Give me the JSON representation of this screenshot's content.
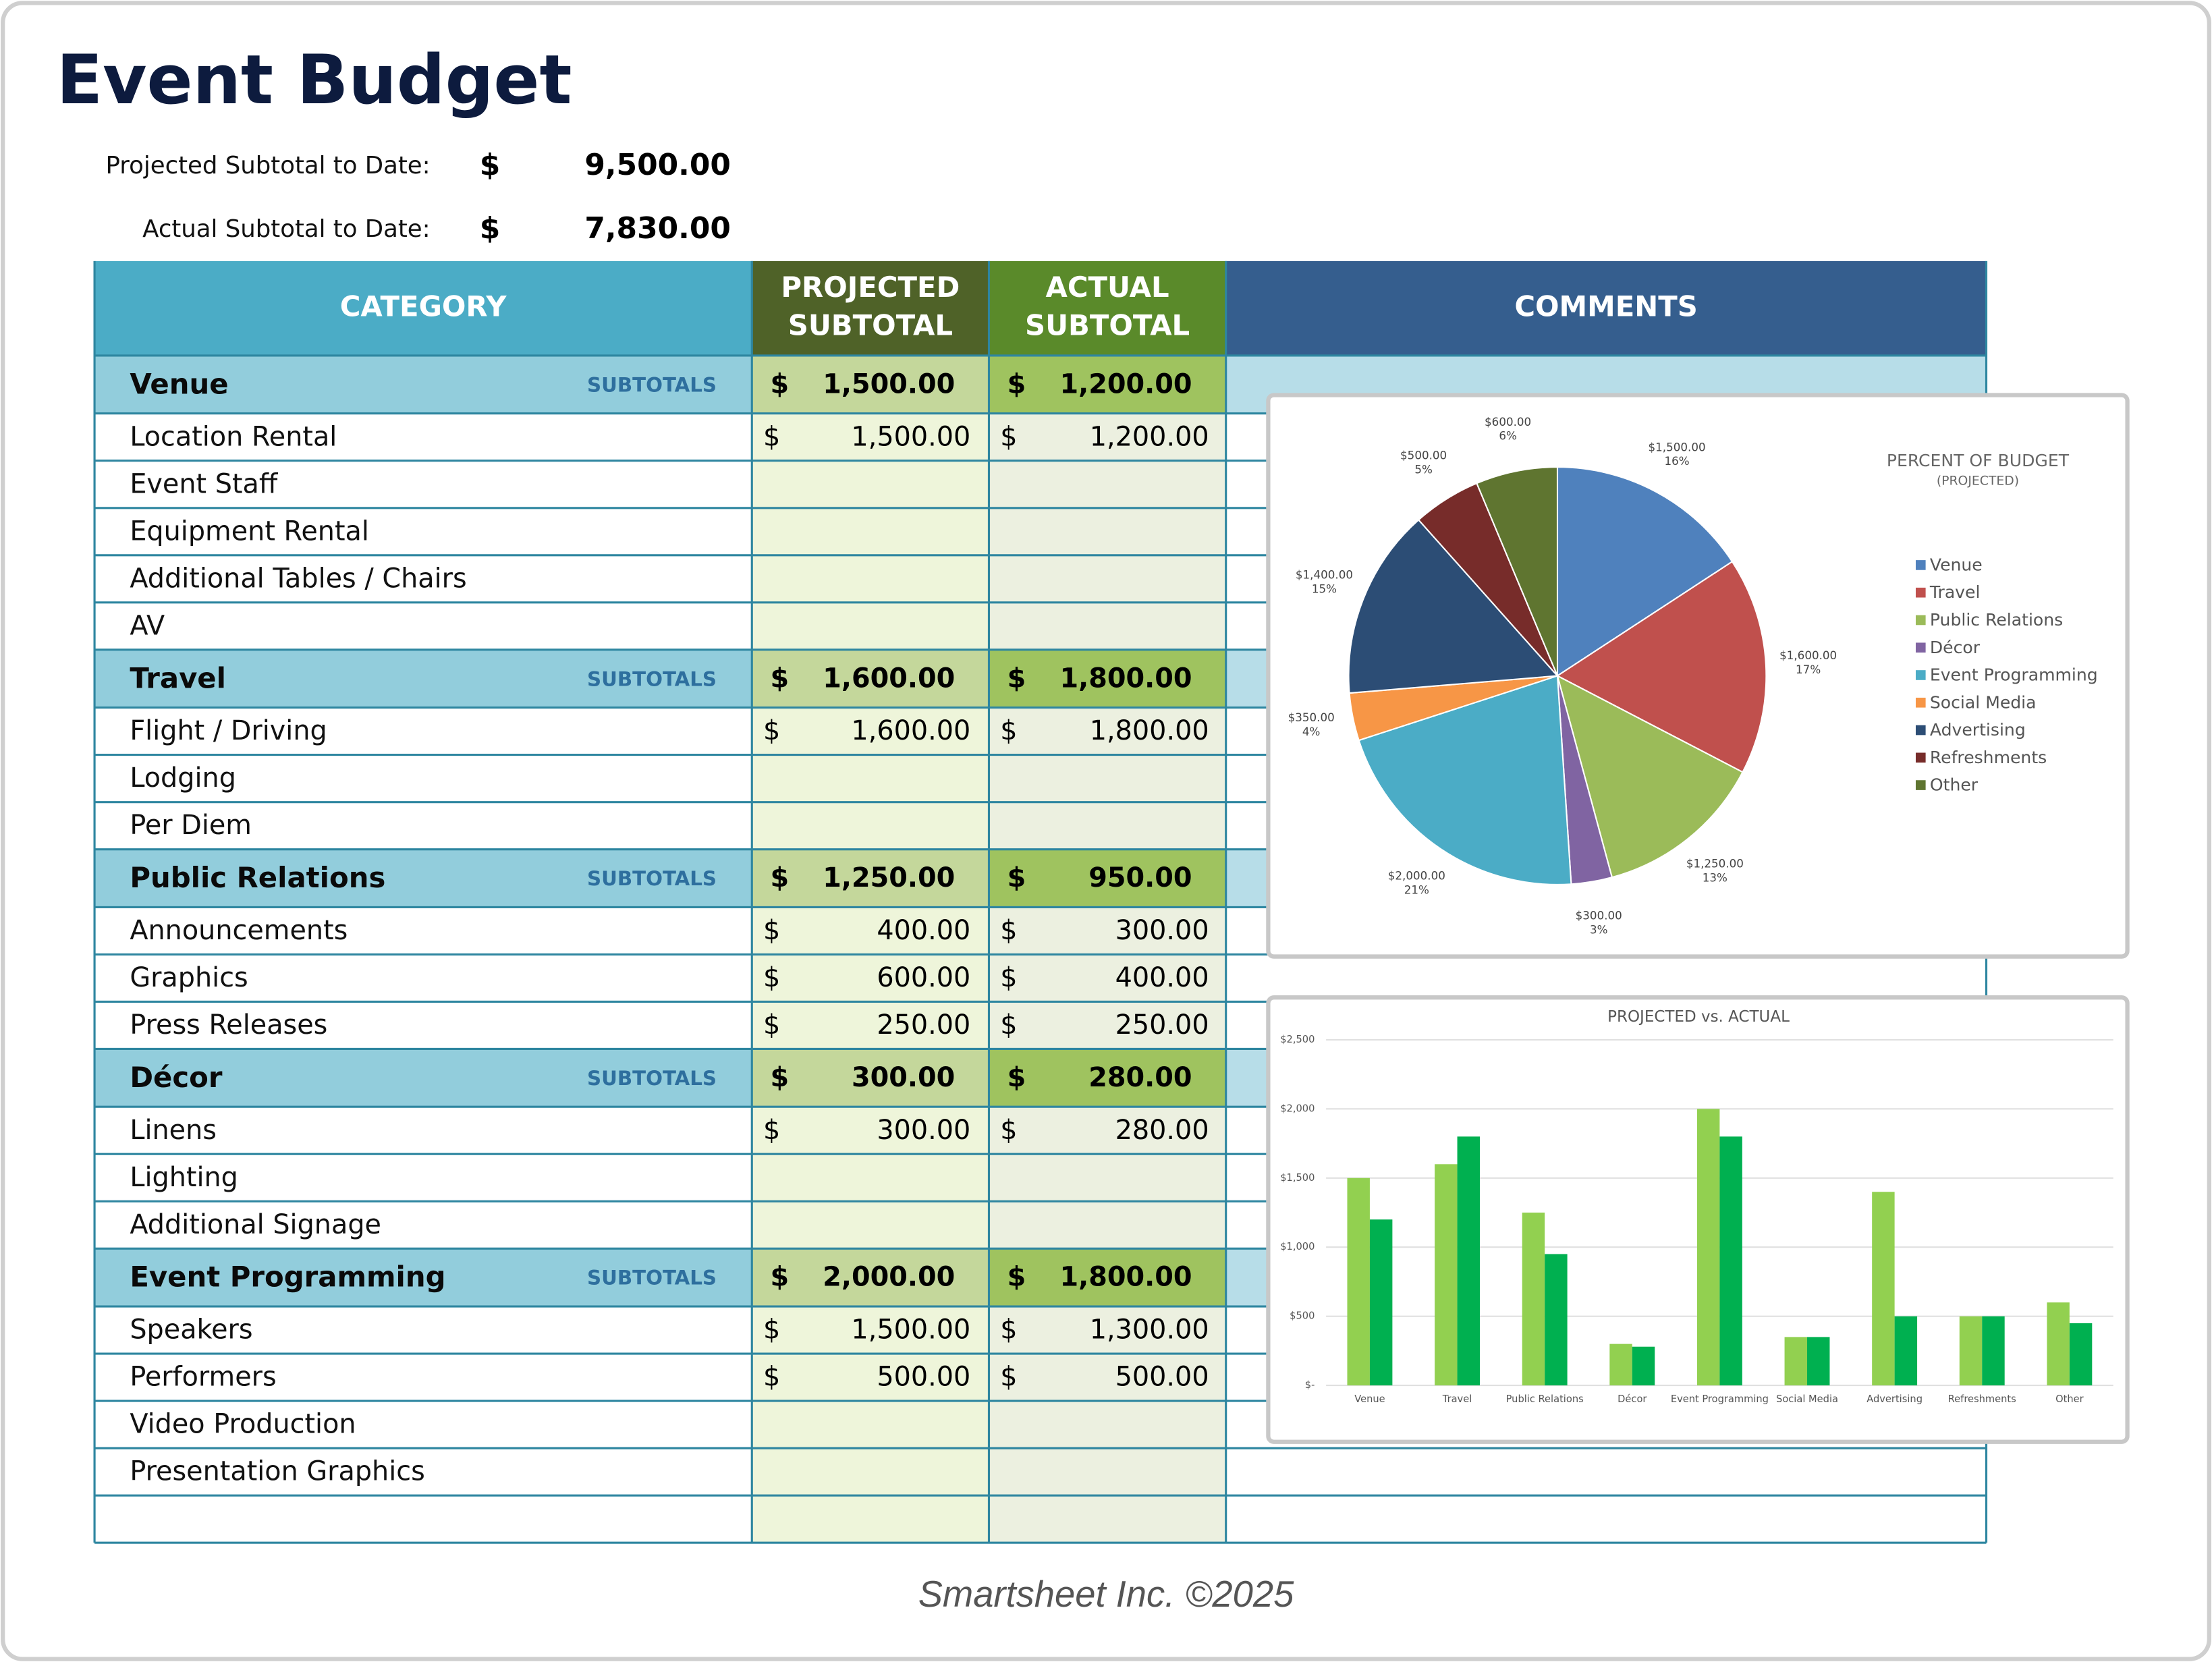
{
  "header": {
    "title": "Event Budget"
  },
  "summary": [
    {
      "label": "Projected Subtotal to Date:",
      "amount": "9,500.00"
    },
    {
      "label": "Actual Subtotal to Date:",
      "amount": "7,830.00"
    }
  ],
  "table": {
    "columns": [
      [
        "CATEGORY"
      ],
      [
        "PROJECTED",
        "SUBTOTAL"
      ],
      [
        "ACTUAL",
        "SUBTOTAL"
      ],
      [
        "COMMENTS"
      ]
    ],
    "currency": "$",
    "subtotal_label": "SUBTOTALS",
    "sections": [
      {
        "name": "Venue",
        "projected": "1,500.00",
        "actual": "1,200.00",
        "items": [
          {
            "name": "Location Rental",
            "projected": "1,500.00",
            "actual": "1,200.00"
          },
          {
            "name": "Event Staff",
            "projected": null,
            "actual": null
          },
          {
            "name": "Equipment Rental",
            "projected": null,
            "actual": null
          },
          {
            "name": "Additional Tables / Chairs",
            "projected": null,
            "actual": null
          },
          {
            "name": "AV",
            "projected": null,
            "actual": null
          }
        ]
      },
      {
        "name": "Travel",
        "projected": "1,600.00",
        "actual": "1,800.00",
        "items": [
          {
            "name": "Flight / Driving",
            "projected": "1,600.00",
            "actual": "1,800.00"
          },
          {
            "name": "Lodging",
            "projected": null,
            "actual": null
          },
          {
            "name": "Per Diem",
            "projected": null,
            "actual": null
          }
        ]
      },
      {
        "name": "Public Relations",
        "projected": "1,250.00",
        "actual": "950.00",
        "items": [
          {
            "name": "Announcements",
            "projected": "400.00",
            "actual": "300.00"
          },
          {
            "name": "Graphics",
            "projected": "600.00",
            "actual": "400.00"
          },
          {
            "name": "Press Releases",
            "projected": "250.00",
            "actual": "250.00"
          }
        ]
      },
      {
        "name": "Décor",
        "projected": "300.00",
        "actual": "280.00",
        "items": [
          {
            "name": "Linens",
            "projected": "300.00",
            "actual": "280.00"
          },
          {
            "name": "Lighting",
            "projected": null,
            "actual": null
          },
          {
            "name": "Additional Signage",
            "projected": null,
            "actual": null
          }
        ]
      },
      {
        "name": "Event Programming",
        "projected": "2,000.00",
        "actual": "1,800.00",
        "items": [
          {
            "name": "Speakers",
            "projected": "1,500.00",
            "actual": "1,300.00"
          },
          {
            "name": "Performers",
            "projected": "500.00",
            "actual": "500.00"
          },
          {
            "name": "Video Production",
            "projected": null,
            "actual": null
          },
          {
            "name": "Presentation Graphics",
            "projected": null,
            "actual": null
          }
        ]
      }
    ]
  },
  "chart_data": [
    {
      "type": "pie",
      "title": "PERCENT OF BUDGET",
      "subtitle": "(PROJECTED)",
      "categories": [
        "Venue",
        "Travel",
        "Public Relations",
        "Décor",
        "Event Programming",
        "Social Media",
        "Advertising",
        "Refreshments",
        "Other"
      ],
      "values": [
        1500,
        1600,
        1250,
        300,
        2000,
        350,
        1400,
        500,
        600
      ],
      "value_labels": [
        "$1,500.00",
        "$1,600.00",
        "$1,250.00",
        "$300.00",
        "$2,000.00",
        "$350.00",
        "$1,400.00",
        "$500.00",
        "$600.00"
      ],
      "percent_labels": [
        "16%",
        "17%",
        "13%",
        "3%",
        "21%",
        "4%",
        "15%",
        "5%",
        "6%"
      ],
      "colors": [
        "#4f81bd",
        "#c0504d",
        "#9bbb59",
        "#8064a2",
        "#4bacc6",
        "#f79646",
        "#2c4d75",
        "#772c2a",
        "#5f7530"
      ],
      "legend": "right"
    },
    {
      "type": "bar",
      "title": "PROJECTED vs. ACTUAL",
      "categories": [
        "Venue",
        "Travel",
        "Public Relations",
        "Décor",
        "Event Programming",
        "Social Media",
        "Advertising",
        "Refreshments",
        "Other"
      ],
      "series": [
        {
          "color": "#92d050",
          "values": [
            1500,
            1600,
            1250,
            300,
            2000,
            350,
            1400,
            500,
            600
          ]
        },
        {
          "color": "#00b050",
          "values": [
            1200,
            1800,
            950,
            280,
            1800,
            350,
            500,
            500,
            450
          ]
        }
      ],
      "ylim": [
        0,
        2500
      ],
      "yticks": [
        {
          "value": 0,
          "label": "$-"
        },
        {
          "value": 500,
          "label": "$500"
        },
        {
          "value": 1000,
          "label": "$1,000"
        },
        {
          "value": 1500,
          "label": "$1,500"
        },
        {
          "value": 2000,
          "label": "$2,000"
        },
        {
          "value": 2500,
          "label": "$2,500"
        }
      ],
      "grid": true
    }
  ],
  "footer": "Smartsheet Inc. ©2025"
}
